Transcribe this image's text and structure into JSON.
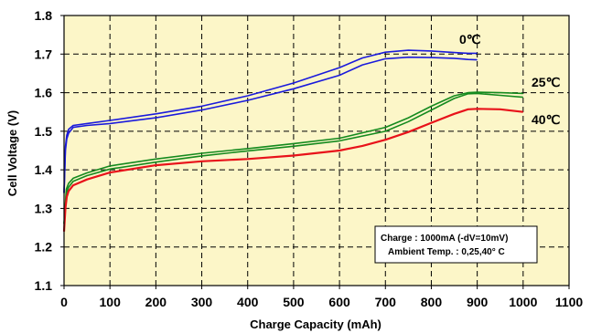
{
  "chart_data": {
    "type": "line",
    "xlabel": "Charge Capacity  (mAh)",
    "ylabel": "Cell Voltage  (V)",
    "xlim": [
      0,
      1100
    ],
    "ylim": [
      1.1,
      1.8
    ],
    "x_ticks": [
      0,
      100,
      200,
      300,
      400,
      500,
      600,
      700,
      800,
      900,
      1000,
      1100
    ],
    "y_ticks": [
      1.1,
      1.2,
      1.3,
      1.4,
      1.5,
      1.6,
      1.7,
      1.8
    ],
    "grid": true,
    "grid_style": "dashed",
    "plot_background": "#fcf6c8",
    "annotation": {
      "line1": "Charge : 1000mA (-dV=10mV)",
      "line2": "Ambient Temp. : 0,25,40° C"
    },
    "series": [
      {
        "name": "0℃",
        "color": "#1a1adc",
        "lines": [
          {
            "x": [
              0,
              3,
              6,
              10,
              20,
              50,
              100,
              200,
              300,
              400,
              500,
              600,
              650,
              700,
              750,
              800,
              850,
              880,
              900
            ],
            "y": [
              1.34,
              1.46,
              1.49,
              1.505,
              1.515,
              1.52,
              1.528,
              1.545,
              1.565,
              1.592,
              1.625,
              1.665,
              1.69,
              1.705,
              1.71,
              1.708,
              1.704,
              1.702,
              1.702
            ]
          },
          {
            "x": [
              0,
              3,
              6,
              10,
              20,
              50,
              100,
              200,
              300,
              400,
              500,
              600,
              650,
              700,
              750,
              800,
              850,
              880,
              900
            ],
            "y": [
              1.34,
              1.45,
              1.48,
              1.495,
              1.51,
              1.515,
              1.52,
              1.535,
              1.555,
              1.58,
              1.61,
              1.645,
              1.672,
              1.688,
              1.692,
              1.691,
              1.689,
              1.686,
              1.685
            ]
          }
        ]
      },
      {
        "name": "25℃",
        "color": "#148a1e",
        "lines": [
          {
            "x": [
              0,
              5,
              10,
              20,
              50,
              100,
              200,
              300,
              400,
              500,
              600,
              700,
              750,
              800,
              850,
              880,
              900,
              950,
              1000
            ],
            "y": [
              1.26,
              1.35,
              1.365,
              1.378,
              1.392,
              1.41,
              1.428,
              1.443,
              1.455,
              1.468,
              1.482,
              1.51,
              1.535,
              1.565,
              1.592,
              1.6,
              1.601,
              1.6,
              1.598
            ]
          },
          {
            "x": [
              0,
              5,
              10,
              20,
              50,
              100,
              200,
              300,
              400,
              500,
              600,
              700,
              750,
              800,
              850,
              880,
              900,
              950,
              1000
            ],
            "y": [
              1.26,
              1.34,
              1.355,
              1.37,
              1.385,
              1.402,
              1.42,
              1.436,
              1.449,
              1.461,
              1.475,
              1.5,
              1.525,
              1.555,
              1.585,
              1.597,
              1.598,
              1.593,
              1.588
            ]
          }
        ]
      },
      {
        "name": "40℃",
        "color": "#e8121a",
        "lines": [
          {
            "x": [
              0,
              3,
              6,
              10,
              20,
              50,
              100,
              200,
              300,
              400,
              500,
              600,
              650,
              700,
              750,
              800,
              850,
              880,
              900,
              950,
              1000
            ],
            "y": [
              1.24,
              1.3,
              1.33,
              1.345,
              1.36,
              1.375,
              1.393,
              1.412,
              1.422,
              1.428,
              1.437,
              1.45,
              1.462,
              1.478,
              1.498,
              1.522,
              1.545,
              1.557,
              1.558,
              1.557,
              1.55
            ]
          }
        ]
      }
    ]
  }
}
